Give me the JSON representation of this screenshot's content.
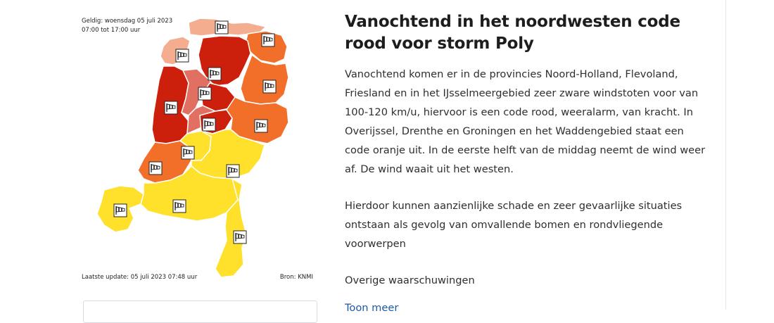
{
  "map": {
    "valid_label": "Geldig: woensdag 05 juli 2023",
    "valid_time": "07:00 tot 17:00 uur",
    "last_update": "Laatste update: 05 juli 2023 07:48 uur",
    "source": "Bron: KNMI",
    "icon": "windsock-icon",
    "colors": {
      "code_red": "#cc1f0c",
      "code_red_light": "#e27062",
      "code_orange": "#f26f2a",
      "code_orange_light": "#f4ad8f",
      "code_yellow": "#ffe02a",
      "border": "#ffffff"
    },
    "regions": [
      {
        "name": "Waddengebied",
        "code": "oranje"
      },
      {
        "name": "Friesland",
        "code": "rood"
      },
      {
        "name": "Groningen",
        "code": "oranje"
      },
      {
        "name": "Drenthe",
        "code": "oranje"
      },
      {
        "name": "Noord-Holland",
        "code": "rood"
      },
      {
        "name": "IJsselmeergebied",
        "code": "rood"
      },
      {
        "name": "Flevoland",
        "code": "rood"
      },
      {
        "name": "Overijssel",
        "code": "oranje"
      },
      {
        "name": "Zuid-Holland",
        "code": "oranje"
      },
      {
        "name": "Utrecht",
        "code": "geel"
      },
      {
        "name": "Gelderland",
        "code": "geel"
      },
      {
        "name": "Zeeland",
        "code": "geel"
      },
      {
        "name": "Noord-Brabant",
        "code": "geel"
      },
      {
        "name": "Limburg",
        "code": "geel"
      }
    ]
  },
  "article": {
    "title": "Vanochtend in het noordwesten code rood voor storm Poly",
    "paragraph1": "Vanochtend komen er in de provincies Noord-Holland, Flevoland, Friesland en in het IJsselmeergebied zeer zware windstoten voor van 100-120 km/u, hiervoor is een code rood, weeralarm, van kracht. In Overijssel, Drenthe en Groningen en het Waddengebied staat een code oranje uit. In de eerste helft van de middag neemt de wind weer af. De wind waait uit het westen.",
    "paragraph2": "Hierdoor kunnen aanzienlijke schade en zeer gevaarlijke situaties ontstaan als gevolg van omvallende bomen en rondvliegende voorwerpen",
    "paragraph3": "Overige waarschuwingen",
    "more_link": "Toon meer"
  }
}
